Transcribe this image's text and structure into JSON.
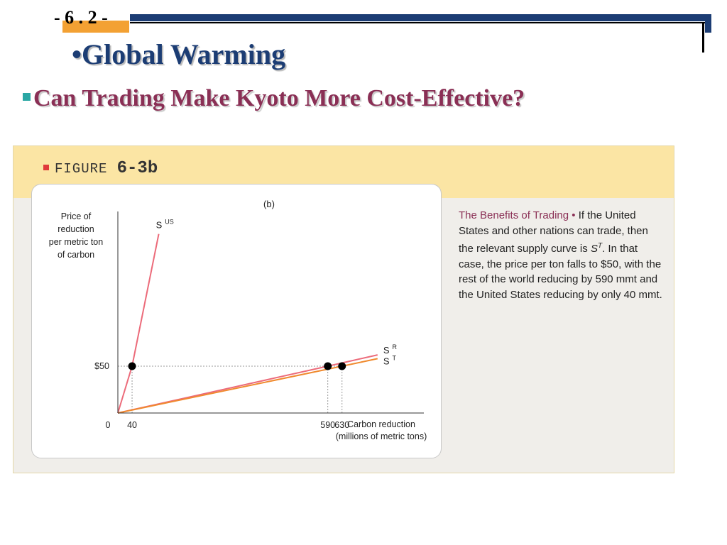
{
  "header": {
    "slide_number": "- 6 . 2 -",
    "title": "•Global Warming",
    "subtitle": "Can Trading Make Kyoto More Cost-Effective?"
  },
  "figure": {
    "label_word": "FIGURE",
    "label_number": "6-3b",
    "caption_title": "The Benefits of Trading •",
    "caption_body": "If the United States and other nations can trade, then the relevant supply curve is S^T. In that case, the price per ton falls to $50, with the rest of the world reducing by 590 mmt and the United States reducing by only 40 mmt."
  },
  "colors": {
    "navy": "#1c3d74",
    "maroon": "#8a2f55",
    "us_curve": "#ec6b7a",
    "r_curve": "#ec6b7a",
    "t_curve": "#f08a2e",
    "panel_header": "#fbe5a4"
  },
  "chart_data": {
    "type": "line",
    "panel_label": "(b)",
    "ylabel": "Price of reduction per metric ton of carbon",
    "xlabel": "Carbon reduction",
    "xlabel_unit": "(millions of metric tons)",
    "x_ticks": [
      "0",
      "40",
      "590",
      "630"
    ],
    "y_ticks": [
      "$50"
    ],
    "series": [
      {
        "name": "S",
        "superscript": "US",
        "points": [
          [
            0,
            0
          ],
          [
            40,
            50
          ],
          [
            115,
            191
          ]
        ]
      },
      {
        "name": "S",
        "superscript": "R",
        "points": [
          [
            0,
            0
          ],
          [
            590,
            50
          ],
          [
            730,
            62
          ]
        ]
      },
      {
        "name": "S",
        "superscript": "T",
        "points": [
          [
            0,
            0
          ],
          [
            630,
            50
          ],
          [
            730,
            58
          ]
        ]
      }
    ],
    "equilibrium_points": [
      [
        40,
        50
      ],
      [
        590,
        50
      ],
      [
        630,
        50
      ]
    ],
    "reference_price": 50,
    "xlim": [
      0,
      860
    ],
    "ylim": [
      0,
      215
    ]
  }
}
